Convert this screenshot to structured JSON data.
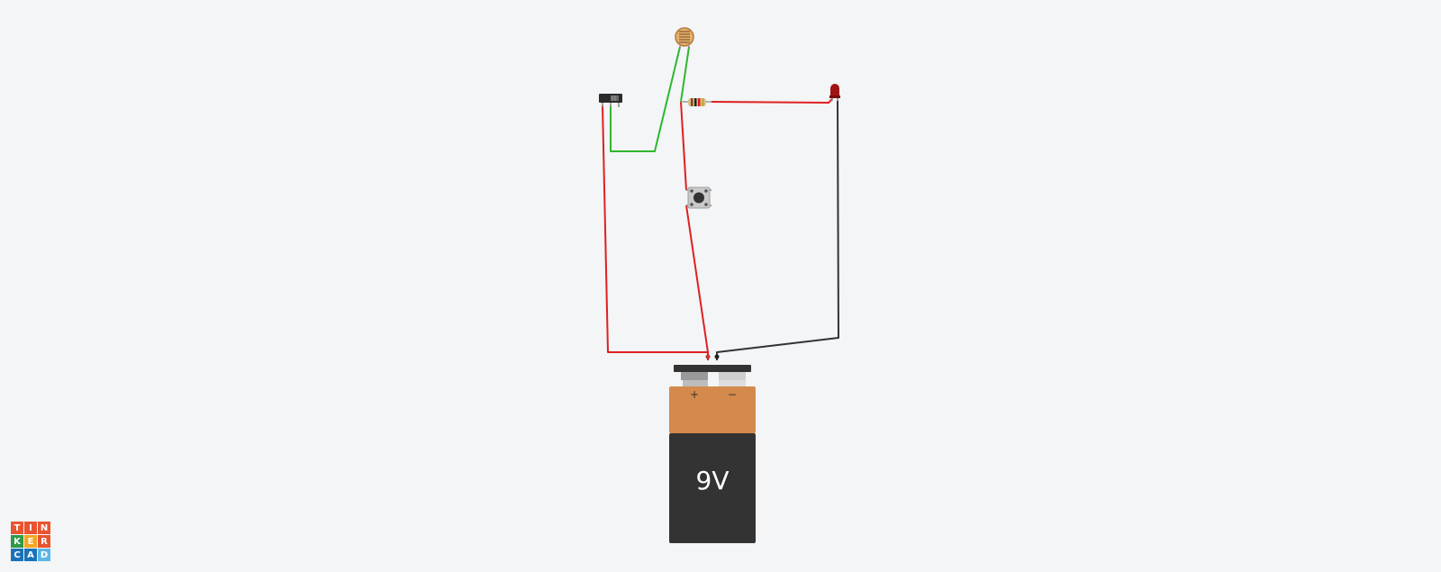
{
  "brand": {
    "logo_letters": [
      "T",
      "I",
      "N",
      "K",
      "E",
      "R",
      "C",
      "A",
      "D"
    ],
    "logo_colors": [
      "#e8542f",
      "#e8542f",
      "#e8542f",
      "#2e9a47",
      "#f5a623",
      "#e8542f",
      "#1a72b8",
      "#1a72b8",
      "#5bb8e6"
    ]
  },
  "battery": {
    "voltage_label": "9V",
    "plus_label": "+",
    "minus_label": "−"
  },
  "colors": {
    "wire_red": "#e02020",
    "wire_green": "#2db82d",
    "wire_black": "#333333",
    "battery_top": "#d48a4c",
    "battery_body": "#333333",
    "led": "#a11414",
    "background": "#f3f5f7"
  }
}
